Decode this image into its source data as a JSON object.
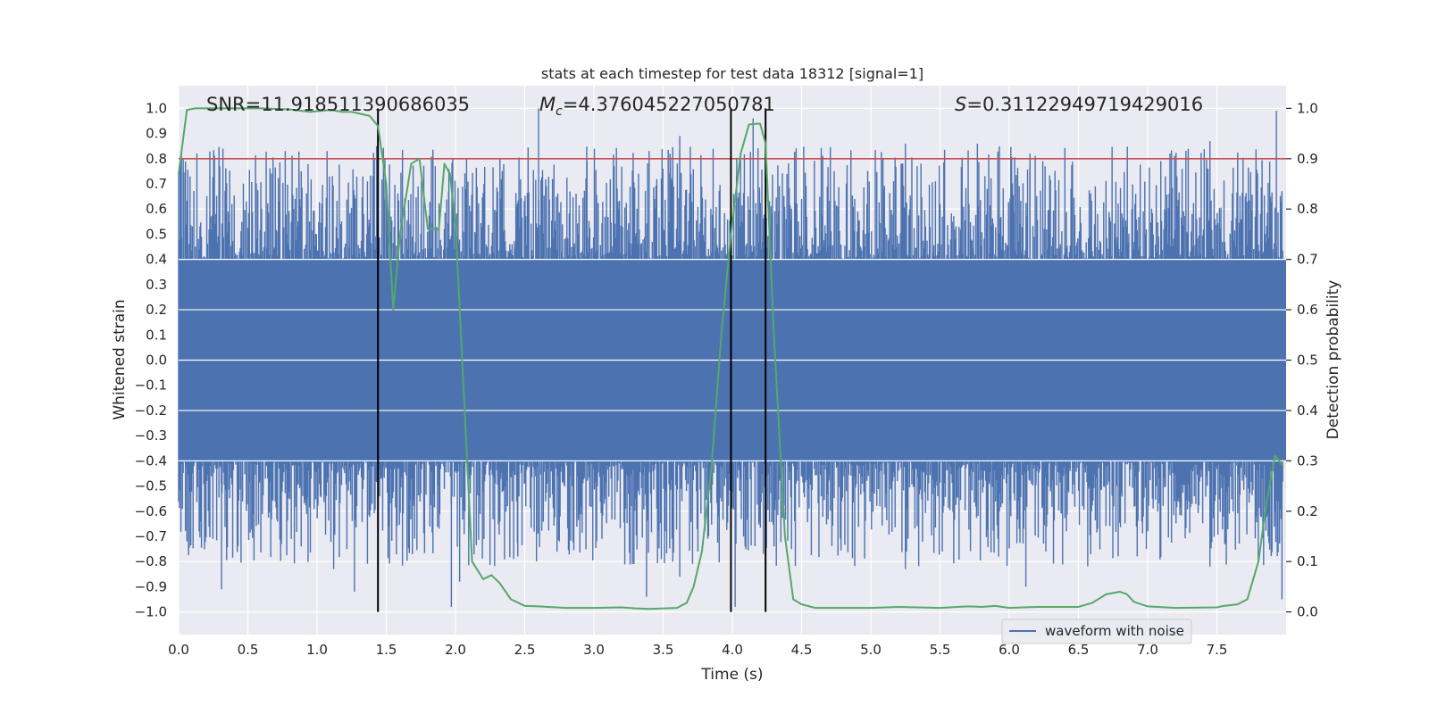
{
  "chart_data": {
    "type": "line",
    "title": "stats at each timestep for test data 18312 [signal=1]",
    "xlabel": "Time (s)",
    "ylabel_left": "Whitened strain",
    "ylabel_right": "Detection probability",
    "xlim": [
      0.0,
      8.0
    ],
    "ylim_left": [
      -1.09,
      1.09
    ],
    "ylim_right": [
      -0.045,
      1.045
    ],
    "x_ticks": [
      "0.0",
      "0.5",
      "1.0",
      "1.5",
      "2.0",
      "2.5",
      "3.0",
      "3.5",
      "4.0",
      "4.5",
      "5.0",
      "5.5",
      "6.0",
      "6.5",
      "7.0",
      "7.5"
    ],
    "y_left_ticks": [
      "1.0",
      "0.9",
      "0.8",
      "0.7",
      "0.6",
      "0.5",
      "0.4",
      "0.3",
      "0.2",
      "0.1",
      "0.0",
      "−0.1",
      "−0.2",
      "−0.3",
      "−0.4",
      "−0.5",
      "−0.6",
      "−0.7",
      "−0.8",
      "−0.9",
      "−1.0"
    ],
    "y_right_ticks": [
      "1.0",
      "0.9",
      "0.8",
      "0.7",
      "0.6",
      "0.5",
      "0.4",
      "0.3",
      "0.2",
      "0.1",
      "0.0"
    ],
    "grid": true,
    "legend": {
      "label": "waveform with noise",
      "position": "lower-right"
    },
    "annotations": {
      "snr": "SNR=11.918511390686035",
      "mc_symbol": "M",
      "mc_sub": "c",
      "mc_value": "=4.376045227050781",
      "s_symbol": "S",
      "s_value": "=0.31122949719429016"
    },
    "threshold": {
      "axis": "right",
      "value": 0.9,
      "color": "#c44e52"
    },
    "vlines_x": [
      1.44,
      3.99,
      4.24
    ],
    "waveform": {
      "name": "waveform with noise",
      "color": "#4c72b0",
      "band_low": -0.4,
      "band_high": 0.4,
      "upper_spikes": [
        [
          0.02,
          0.82
        ],
        [
          0.32,
          0.84
        ],
        [
          0.87,
          0.75
        ],
        [
          1.43,
          0.85
        ],
        [
          1.73,
          0.69
        ],
        [
          1.95,
          0.67
        ],
        [
          2.08,
          0.8
        ],
        [
          2.6,
          1.0
        ],
        [
          2.95,
          0.79
        ],
        [
          3.55,
          0.82
        ],
        [
          3.62,
          0.89
        ],
        [
          4.03,
          0.73
        ],
        [
          4.15,
          0.96
        ],
        [
          4.5,
          0.64
        ],
        [
          5.25,
          0.86
        ],
        [
          5.77,
          0.86
        ],
        [
          6.15,
          0.82
        ],
        [
          7.45,
          0.87
        ],
        [
          7.93,
          0.99
        ]
      ],
      "lower_spikes": [
        [
          0.06,
          -0.72
        ],
        [
          0.31,
          -0.91
        ],
        [
          1.12,
          -0.83
        ],
        [
          1.27,
          -0.92
        ],
        [
          1.97,
          -0.98
        ],
        [
          2.03,
          -0.88
        ],
        [
          2.45,
          -0.78
        ],
        [
          2.75,
          -0.72
        ],
        [
          3.38,
          -0.94
        ],
        [
          3.62,
          -0.86
        ],
        [
          4.02,
          -0.98
        ],
        [
          5.25,
          -0.83
        ],
        [
          6.12,
          -0.9
        ],
        [
          7.45,
          -0.82
        ],
        [
          7.97,
          -0.95
        ]
      ]
    },
    "probability": {
      "name": "detection probability",
      "color": "#55a868",
      "x": [
        0.0,
        0.06,
        0.12,
        0.6,
        0.8,
        0.95,
        1.1,
        1.18,
        1.25,
        1.38,
        1.44,
        1.5,
        1.55,
        1.6,
        1.68,
        1.74,
        1.8,
        1.88,
        1.92,
        1.96,
        2.0,
        2.12,
        2.2,
        2.26,
        2.32,
        2.4,
        2.5,
        2.6,
        2.8,
        3.0,
        3.2,
        3.3,
        3.4,
        3.6,
        3.67,
        3.72,
        3.78,
        3.85,
        3.92,
        3.99,
        4.06,
        4.12,
        4.2,
        4.24,
        4.3,
        4.38,
        4.44,
        4.5,
        4.6,
        4.8,
        5.0,
        5.2,
        5.5,
        5.7,
        5.8,
        5.9,
        6.0,
        6.2,
        6.5,
        6.6,
        6.7,
        6.8,
        6.85,
        6.9,
        7.0,
        7.2,
        7.5,
        7.55,
        7.65,
        7.72,
        7.8,
        7.86,
        7.92,
        7.98
      ],
      "y": [
        0.87,
        0.997,
        1.0,
        1.0,
        0.998,
        0.993,
        0.997,
        0.993,
        0.993,
        0.985,
        0.965,
        0.85,
        0.6,
        0.75,
        0.89,
        0.9,
        0.76,
        0.76,
        0.89,
        0.87,
        0.77,
        0.1,
        0.065,
        0.073,
        0.057,
        0.025,
        0.012,
        0.011,
        0.008,
        0.008,
        0.009,
        0.007,
        0.006,
        0.008,
        0.018,
        0.05,
        0.12,
        0.29,
        0.55,
        0.75,
        0.91,
        0.968,
        0.97,
        0.93,
        0.55,
        0.15,
        0.025,
        0.015,
        0.008,
        0.008,
        0.008,
        0.01,
        0.008,
        0.011,
        0.01,
        0.012,
        0.008,
        0.01,
        0.01,
        0.018,
        0.035,
        0.04,
        0.035,
        0.02,
        0.011,
        0.008,
        0.009,
        0.012,
        0.015,
        0.025,
        0.1,
        0.22,
        0.31,
        0.29
      ]
    }
  }
}
